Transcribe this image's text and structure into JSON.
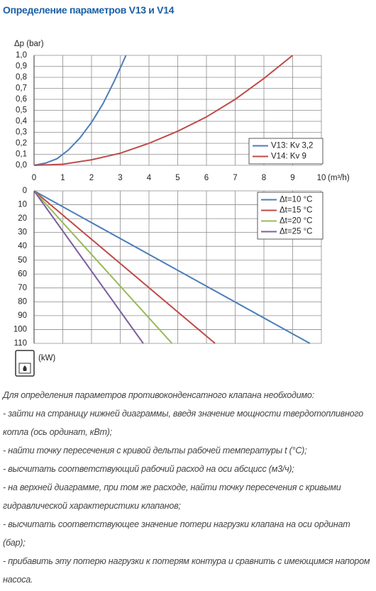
{
  "title": "Определение параметров V13 и V14",
  "chart_data": [
    {
      "type": "line",
      "ylabel": "Δp (bar)",
      "xlabel": "(m³/h)",
      "xlim": [
        0,
        10
      ],
      "xticks": [
        0,
        1,
        2,
        3,
        4,
        5,
        6,
        7,
        8,
        9,
        10
      ],
      "xtick_labels": true,
      "ylim": [
        0,
        1.0
      ],
      "yticks": [
        {
          "value": 0,
          "label": "0,0"
        },
        {
          "value": 0.1,
          "label": "0,1"
        },
        {
          "value": 0.2,
          "label": "0,2"
        },
        {
          "value": 0.3,
          "label": "0,3"
        },
        {
          "value": 0.4,
          "label": "0,4"
        },
        {
          "value": 0.5,
          "label": "0,5"
        },
        {
          "value": 0.6,
          "label": "0,6"
        },
        {
          "value": 0.7,
          "label": "0,7"
        },
        {
          "value": 0.8,
          "label": "0,8"
        },
        {
          "value": 0.9,
          "label": "0,9"
        },
        {
          "value": 1.0,
          "label": "1,0"
        }
      ],
      "y_inverted": false,
      "grid": true,
      "legend": "lower right",
      "series": [
        {
          "name": "V13: Kv 3,2",
          "color": "#4a7ebb",
          "x": [
            0,
            0.4,
            0.8,
            1.2,
            1.6,
            2.0,
            2.4,
            2.8,
            3.2
          ],
          "values": [
            0,
            0.02,
            0.06,
            0.14,
            0.25,
            0.39,
            0.56,
            0.77,
            1.0
          ]
        },
        {
          "name": "V14: Kv 9",
          "color": "#be4b48",
          "x": [
            0,
            1,
            2,
            3,
            4,
            5,
            6,
            7,
            8,
            9
          ],
          "values": [
            0,
            0.01,
            0.05,
            0.11,
            0.2,
            0.31,
            0.44,
            0.6,
            0.79,
            1.0
          ]
        }
      ]
    },
    {
      "type": "line",
      "ylabel": "(kW)",
      "xlim": [
        0,
        10
      ],
      "xticks": [
        0,
        1,
        2,
        3,
        4,
        5,
        6,
        7,
        8,
        9,
        10
      ],
      "xtick_labels": false,
      "ylim": [
        0,
        110
      ],
      "yticks": [
        0,
        10,
        20,
        30,
        40,
        50,
        60,
        70,
        80,
        90,
        100,
        110
      ],
      "y_inverted": true,
      "grid": true,
      "legend": "upper right",
      "series": [
        {
          "name": "Δt=10 °C",
          "color": "#4a7ebb",
          "x": [
            0,
            9.6
          ],
          "values": [
            0,
            110
          ]
        },
        {
          "name": "Δt=15 °C",
          "color": "#be4b48",
          "x": [
            0,
            6.3
          ],
          "values": [
            0,
            110
          ]
        },
        {
          "name": "Δt=20 °C",
          "color": "#98b954",
          "x": [
            0,
            4.8
          ],
          "values": [
            0,
            110
          ]
        },
        {
          "name": "Δt=25 °C",
          "color": "#7d60a0",
          "x": [
            0,
            3.8
          ],
          "values": [
            0,
            110
          ]
        }
      ]
    }
  ],
  "paragraphs": [
    "Для определения параметров противоконденсатного клапана необходимо:",
    "- зайти на страницу нижней диаграммы, введя значение мощности твердотопливного котла (ось ординат, кВт);",
    "- найти точку пересечения с кривой дельты рабочей температуры t (°С);",
    "- высчитать соответствующий рабочий расход на оси абсцисс (м3/ч);",
    "- на верхней диаграмме, при том же расходе, найти точку пересечения с кривыми гидравлической характеристики клапанов;",
    "- высчитать соответствующее значение потери нагрузки клапана на оси ординат (бар);",
    "- прибавить эту потерю нагрузки к потерям контура и сравнить с имеющимся напором насоса."
  ]
}
